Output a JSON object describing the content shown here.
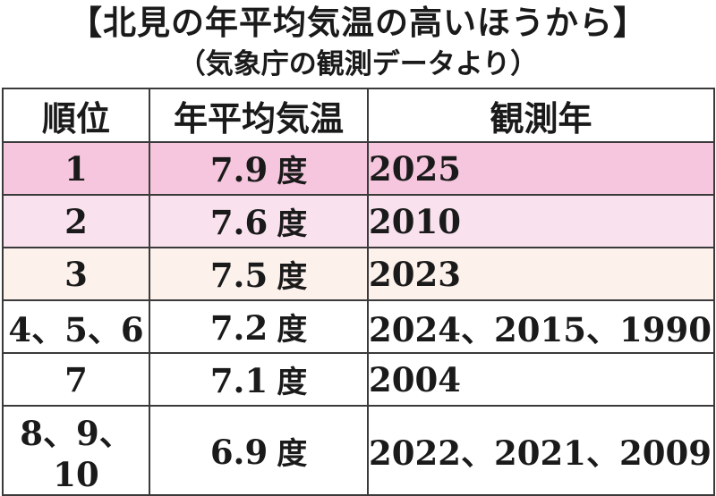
{
  "title": "【北見の年平均気温の高いほうから】",
  "subtitle": "（気象庁の観測データより）",
  "table": {
    "headers": [
      "順位",
      "年平均気温",
      "観測年"
    ],
    "rows": [
      {
        "rank": "1",
        "temp": "7.9",
        "unit": "度",
        "years": "2025",
        "bg": "#f5c6dd"
      },
      {
        "rank": "2",
        "temp": "7.6",
        "unit": "度",
        "years": "2010",
        "bg": "#f9e1ee"
      },
      {
        "rank": "3",
        "temp": "7.5",
        "unit": "度",
        "years": "2023",
        "bg": "#fdf1ec"
      },
      {
        "rank": "4、5、6",
        "temp": "7.2",
        "unit": "度",
        "years": "2024、2015、1990",
        "bg": "#ffffff"
      },
      {
        "rank": "7",
        "temp": "7.1",
        "unit": "度",
        "years": "2004",
        "bg": "#ffffff"
      },
      {
        "rank": "8、9、10",
        "temp": "6.9",
        "unit": "度",
        "years": "2022、2021、2009",
        "bg": "#ffffff"
      }
    ]
  }
}
